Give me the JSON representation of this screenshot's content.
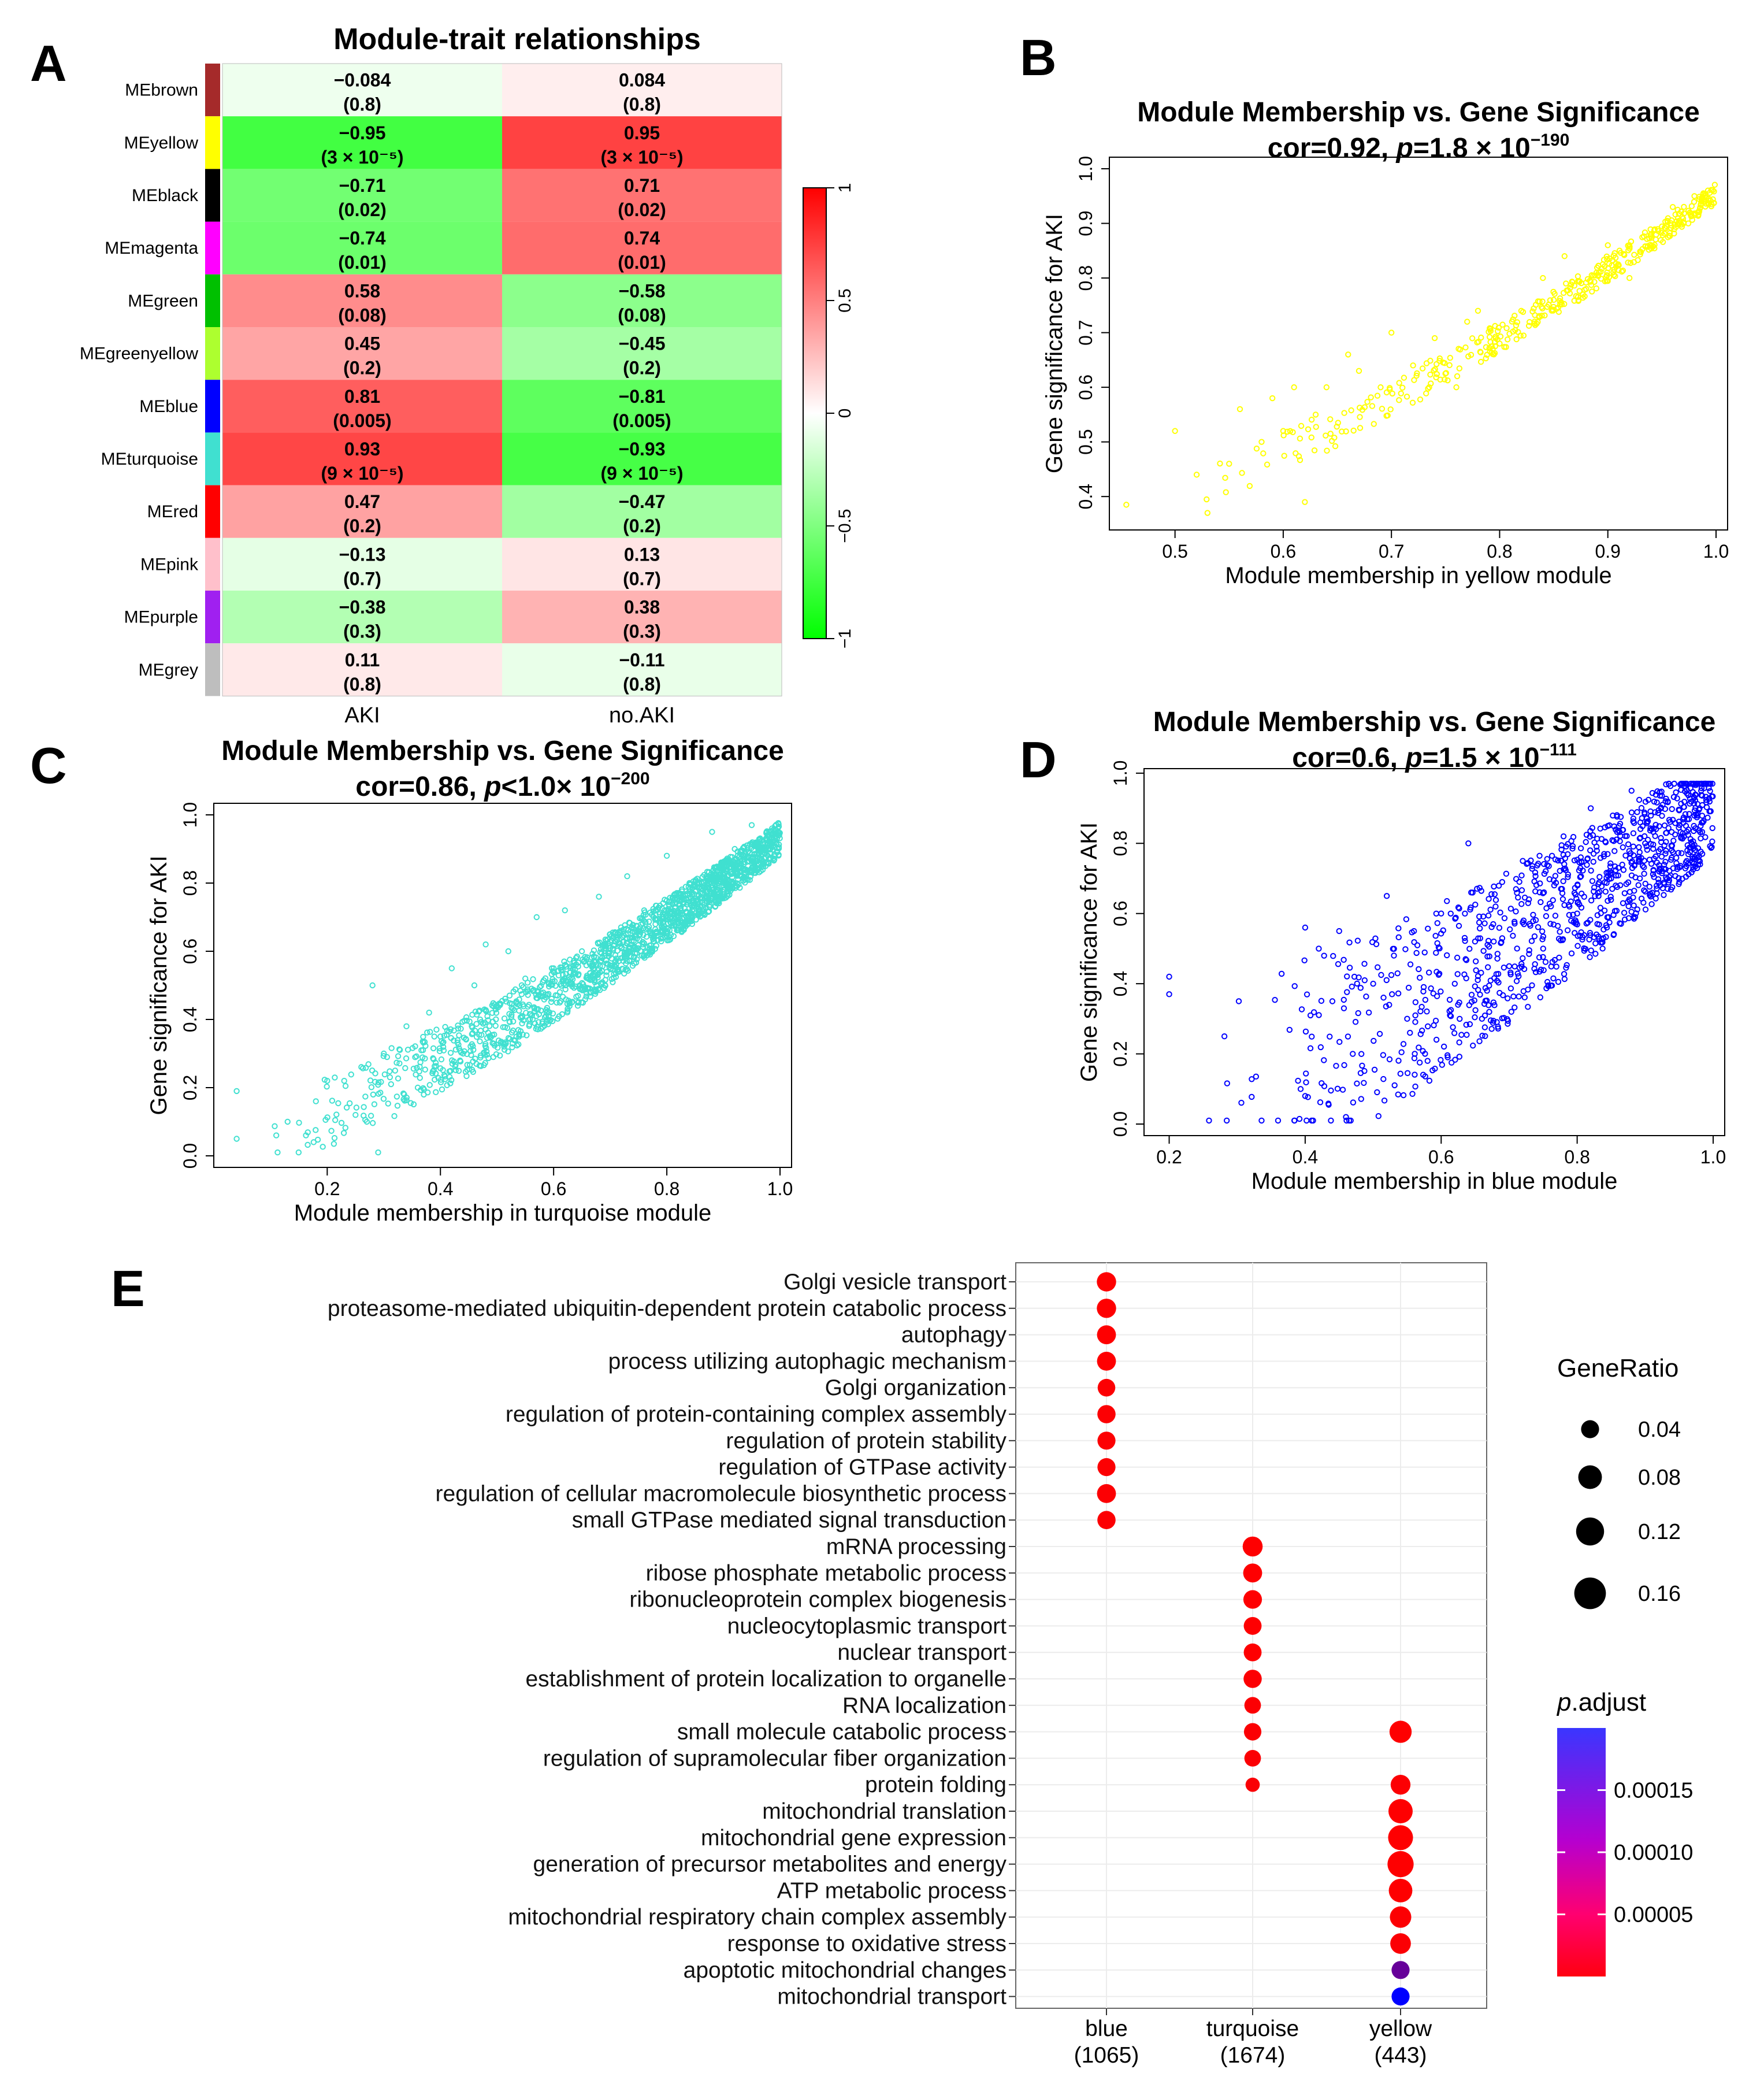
{
  "figure": {
    "panel_labels": [
      "A",
      "B",
      "C",
      "D",
      "E"
    ]
  },
  "chart_data": [
    {
      "panel": "A",
      "type": "heatmap",
      "title": "Module-trait relationships",
      "columns": [
        "AKI",
        "no.AKI"
      ],
      "rows": [
        "MEbrown",
        "MEyellow",
        "MEblack",
        "MEmagenta",
        "MEgreen",
        "MEgreenyellow",
        "MEblue",
        "MEturquoise",
        "MEred",
        "MEpink",
        "MEpurple",
        "MEgrey"
      ],
      "row_colors": [
        "#a52a2a",
        "#ffff00",
        "#000000",
        "#ff00ff",
        "#00c000",
        "#adff2f",
        "#0000ff",
        "#40e0d0",
        "#ff0000",
        "#ffc0cb",
        "#a020f0",
        "#bebebe"
      ],
      "values": [
        [
          -0.084,
          0.084
        ],
        [
          -0.95,
          0.95
        ],
        [
          -0.71,
          0.71
        ],
        [
          -0.74,
          0.74
        ],
        [
          0.58,
          -0.58
        ],
        [
          0.45,
          -0.45
        ],
        [
          0.81,
          -0.81
        ],
        [
          0.93,
          -0.93
        ],
        [
          0.47,
          -0.47
        ],
        [
          -0.13,
          0.13
        ],
        [
          -0.38,
          0.38
        ],
        [
          0.11,
          -0.11
        ]
      ],
      "labels": [
        [
          "−0.084",
          "0.084"
        ],
        [
          "−0.95",
          "0.95"
        ],
        [
          "−0.71",
          "0.71"
        ],
        [
          "−0.74",
          "0.74"
        ],
        [
          "0.58",
          "−0.58"
        ],
        [
          "0.45",
          "−0.45"
        ],
        [
          "0.81",
          "−0.81"
        ],
        [
          "0.93",
          "−0.93"
        ],
        [
          "0.47",
          "−0.47"
        ],
        [
          "−0.13",
          "0.13"
        ],
        [
          "−0.38",
          "0.38"
        ],
        [
          "0.11",
          "−0.11"
        ]
      ],
      "pvalues": [
        [
          "(0.8)",
          "(0.8)"
        ],
        [
          "(3 × 10⁻⁵)",
          "(3 × 10⁻⁵)"
        ],
        [
          "(0.02)",
          "(0.02)"
        ],
        [
          "(0.01)",
          "(0.01)"
        ],
        [
          "(0.08)",
          "(0.08)"
        ],
        [
          "(0.2)",
          "(0.2)"
        ],
        [
          "(0.005)",
          "(0.005)"
        ],
        [
          "(9 × 10⁻⁵)",
          "(9 × 10⁻⁵)"
        ],
        [
          "(0.2)",
          "(0.2)"
        ],
        [
          "(0.7)",
          "(0.7)"
        ],
        [
          "(0.3)",
          "(0.3)"
        ],
        [
          "(0.8)",
          "(0.8)"
        ]
      ],
      "colorbar": {
        "range": [
          -1,
          1
        ],
        "ticks": [
          1,
          0.5,
          0,
          -0.5,
          -1
        ],
        "tick_labels": [
          "1",
          "0.5",
          "0",
          "−0.5",
          "−1"
        ],
        "low": "#00ff00",
        "mid": "#ffffff",
        "high": "#ff0000"
      }
    },
    {
      "panel": "B",
      "type": "scatter",
      "title": "Module Membership vs. Gene Significance",
      "subtitle_prefix": "cor=0.92, ",
      "subtitle_p": "p",
      "subtitle_rest": "=1.8 × 10",
      "subtitle_exp": "−190",
      "xlabel": "Module membership in yellow module",
      "ylabel": "Gene significance for AKI",
      "xlim": [
        0.45,
        1.0
      ],
      "ylim": [
        0.36,
        1.0
      ],
      "xticks": [
        0.5,
        0.6,
        0.7,
        0.8,
        0.9,
        1.0
      ],
      "xtick_labels": [
        "0.5",
        "0.6",
        "0.7",
        "0.8",
        "0.9",
        "1.0"
      ],
      "yticks": [
        0.4,
        0.5,
        0.6,
        0.7,
        0.8,
        0.9,
        1.0
      ],
      "ytick_labels": [
        "0.4",
        "0.5",
        "0.6",
        "0.7",
        "0.8",
        "0.9",
        "1.0"
      ],
      "color": "#ffff00",
      "n_points": 443,
      "cor": 0.92,
      "points": [
        [
          0.455,
          0.385
        ],
        [
          0.5,
          0.52
        ],
        [
          0.52,
          0.44
        ],
        [
          0.53,
          0.37
        ],
        [
          0.55,
          0.46
        ],
        [
          0.56,
          0.56
        ],
        [
          0.58,
          0.5
        ],
        [
          0.59,
          0.58
        ],
        [
          0.6,
          0.52
        ],
        [
          0.61,
          0.6
        ],
        [
          0.62,
          0.39
        ],
        [
          0.63,
          0.55
        ],
        [
          0.64,
          0.6
        ],
        [
          0.66,
          0.66
        ],
        [
          0.67,
          0.63
        ],
        [
          0.69,
          0.6
        ],
        [
          0.7,
          0.7
        ],
        [
          0.72,
          0.64
        ],
        [
          0.74,
          0.69
        ],
        [
          0.76,
          0.6
        ],
        [
          0.77,
          0.72
        ],
        [
          0.78,
          0.74
        ],
        [
          0.8,
          0.68
        ],
        [
          0.82,
          0.74
        ],
        [
          0.84,
          0.8
        ],
        [
          0.85,
          0.76
        ],
        [
          0.86,
          0.84
        ],
        [
          0.88,
          0.78
        ],
        [
          0.9,
          0.86
        ],
        [
          0.92,
          0.8
        ],
        [
          0.94,
          0.88
        ],
        [
          0.96,
          0.93
        ],
        [
          0.97,
          0.9
        ],
        [
          0.98,
          0.95
        ],
        [
          0.99,
          0.94
        ]
      ]
    },
    {
      "panel": "C",
      "type": "scatter",
      "title": "Module Membership vs. Gene Significance",
      "subtitle_prefix": "cor=0.86, ",
      "subtitle_p": "p",
      "subtitle_rest": "<1.0× 10",
      "subtitle_exp": "−200",
      "xlabel": "Module membership in turquoise module",
      "ylabel": "Gene significance for AKI",
      "xlim": [
        0.02,
        1.0
      ],
      "ylim": [
        0.0,
        1.0
      ],
      "xticks": [
        0.2,
        0.4,
        0.6,
        0.8,
        1.0
      ],
      "xtick_labels": [
        "0.2",
        "0.4",
        "0.6",
        "0.8",
        "1.0"
      ],
      "yticks": [
        0.0,
        0.2,
        0.4,
        0.6,
        0.8,
        1.0
      ],
      "ytick_labels": [
        "0.0",
        "0.2",
        "0.4",
        "0.6",
        "0.8",
        "1.0"
      ],
      "color": "#40e0d0",
      "n_points": 1674,
      "cor": 0.86,
      "points": [
        [
          0.04,
          0.19
        ],
        [
          0.04,
          0.05
        ],
        [
          0.11,
          0.06
        ],
        [
          0.13,
          0.1
        ],
        [
          0.18,
          0.16
        ],
        [
          0.2,
          0.22
        ],
        [
          0.23,
          0.22
        ],
        [
          0.25,
          0.12
        ],
        [
          0.27,
          0.1
        ],
        [
          0.28,
          0.5
        ],
        [
          0.29,
          0.01
        ],
        [
          0.3,
          0.3
        ],
        [
          0.32,
          0.25
        ],
        [
          0.34,
          0.38
        ],
        [
          0.36,
          0.2
        ],
        [
          0.38,
          0.42
        ],
        [
          0.4,
          0.35
        ],
        [
          0.42,
          0.55
        ],
        [
          0.44,
          0.3
        ],
        [
          0.46,
          0.5
        ],
        [
          0.48,
          0.62
        ],
        [
          0.5,
          0.44
        ],
        [
          0.52,
          0.6
        ],
        [
          0.55,
          0.52
        ],
        [
          0.57,
          0.7
        ],
        [
          0.6,
          0.55
        ],
        [
          0.62,
          0.72
        ],
        [
          0.65,
          0.6
        ],
        [
          0.68,
          0.76
        ],
        [
          0.7,
          0.65
        ],
        [
          0.73,
          0.82
        ],
        [
          0.76,
          0.72
        ],
        [
          0.8,
          0.88
        ],
        [
          0.84,
          0.8
        ],
        [
          0.88,
          0.95
        ],
        [
          0.92,
          0.9
        ],
        [
          0.95,
          0.97
        ]
      ]
    },
    {
      "panel": "D",
      "type": "scatter",
      "title": "Module Membership vs. Gene Significance",
      "subtitle_prefix": "cor=0.6, ",
      "subtitle_p": "p",
      "subtitle_rest": "=1.5 × 10",
      "subtitle_exp": "−111",
      "xlabel": "Module membership in blue module",
      "ylabel": "Gene significance for AKI",
      "xlim": [
        0.18,
        1.0
      ],
      "ylim": [
        0.0,
        0.98
      ],
      "xticks": [
        0.2,
        0.4,
        0.6,
        0.8,
        1.0
      ],
      "xtick_labels": [
        "0.2",
        "0.4",
        "0.6",
        "0.8",
        "1.0"
      ],
      "yticks": [
        0.0,
        0.2,
        0.4,
        0.6,
        0.8,
        1.0
      ],
      "ytick_labels": [
        "0.0",
        "0.2",
        "0.4",
        "0.6",
        "0.8",
        "1.0"
      ],
      "color": "#0000ff",
      "n_points": 1065,
      "cor": 0.6,
      "points": [
        [
          0.2,
          0.42
        ],
        [
          0.2,
          0.37
        ],
        [
          0.4,
          0.56
        ],
        [
          0.4,
          0.08
        ],
        [
          0.42,
          0.5
        ],
        [
          0.44,
          0.35
        ],
        [
          0.45,
          0.55
        ],
        [
          0.46,
          0.02
        ],
        [
          0.47,
          0.2
        ],
        [
          0.5,
          0.4
        ],
        [
          0.52,
          0.65
        ],
        [
          0.55,
          0.3
        ],
        [
          0.56,
          0.55
        ],
        [
          0.58,
          0.18
        ],
        [
          0.6,
          0.6
        ],
        [
          0.62,
          0.4
        ],
        [
          0.64,
          0.8
        ],
        [
          0.66,
          0.3
        ],
        [
          0.68,
          0.62
        ],
        [
          0.7,
          0.45
        ],
        [
          0.72,
          0.75
        ],
        [
          0.75,
          0.5
        ],
        [
          0.78,
          0.82
        ],
        [
          0.8,
          0.6
        ],
        [
          0.82,
          0.9
        ],
        [
          0.85,
          0.7
        ],
        [
          0.88,
          0.95
        ],
        [
          0.9,
          0.8
        ],
        [
          0.93,
          0.92
        ],
        [
          0.96,
          0.85
        ],
        [
          0.98,
          0.9
        ]
      ]
    },
    {
      "panel": "E",
      "type": "scatter",
      "subtype": "dotplot",
      "terms": [
        "Golgi vesicle transport",
        "proteasome-mediated ubiquitin-dependent protein catabolic process",
        "autophagy",
        "process utilizing autophagic mechanism",
        "Golgi organization",
        "regulation of protein-containing complex assembly",
        "regulation of protein stability",
        "regulation of GTPase activity",
        "regulation of cellular macromolecule biosynthetic process",
        "small GTPase mediated signal transduction",
        "mRNA processing",
        "ribose phosphate metabolic process",
        "ribonucleoprotein complex biogenesis",
        "nucleocytoplasmic transport",
        "nuclear transport",
        "establishment of protein localization to organelle",
        "RNA localization",
        "small molecule catabolic process",
        "regulation of supramolecular fiber organization",
        "protein folding",
        "mitochondrial translation",
        "mitochondrial gene expression",
        "generation of precursor metabolites and energy",
        "ATP metabolic process",
        "mitochondrial respiratory chain complex assembly",
        "response to oxidative stress",
        "apoptotic mitochondrial changes",
        "mitochondrial transport"
      ],
      "clusters": [
        {
          "name": "blue",
          "count": "(1065)"
        },
        {
          "name": "turquoise",
          "count": "(1674)"
        },
        {
          "name": "yellow",
          "count": "(443)"
        }
      ],
      "dots": [
        {
          "term": 0,
          "cluster": 0,
          "gene_ratio": 0.042,
          "p_adjust": 1e-06
        },
        {
          "term": 1,
          "cluster": 0,
          "gene_ratio": 0.042,
          "p_adjust": 1e-06
        },
        {
          "term": 2,
          "cluster": 0,
          "gene_ratio": 0.04,
          "p_adjust": 1e-06
        },
        {
          "term": 3,
          "cluster": 0,
          "gene_ratio": 0.04,
          "p_adjust": 1e-06
        },
        {
          "term": 4,
          "cluster": 0,
          "gene_ratio": 0.033,
          "p_adjust": 2e-06
        },
        {
          "term": 5,
          "cluster": 0,
          "gene_ratio": 0.036,
          "p_adjust": 2e-06
        },
        {
          "term": 6,
          "cluster": 0,
          "gene_ratio": 0.035,
          "p_adjust": 2e-06
        },
        {
          "term": 7,
          "cluster": 0,
          "gene_ratio": 0.035,
          "p_adjust": 2e-06
        },
        {
          "term": 8,
          "cluster": 0,
          "gene_ratio": 0.04,
          "p_adjust": 2e-06
        },
        {
          "term": 9,
          "cluster": 0,
          "gene_ratio": 0.036,
          "p_adjust": 2e-06
        },
        {
          "term": 10,
          "cluster": 1,
          "gene_ratio": 0.046,
          "p_adjust": 1e-06
        },
        {
          "term": 11,
          "cluster": 1,
          "gene_ratio": 0.04,
          "p_adjust": 1e-06
        },
        {
          "term": 12,
          "cluster": 1,
          "gene_ratio": 0.038,
          "p_adjust": 1e-06
        },
        {
          "term": 13,
          "cluster": 1,
          "gene_ratio": 0.034,
          "p_adjust": 1e-06
        },
        {
          "term": 14,
          "cluster": 1,
          "gene_ratio": 0.034,
          "p_adjust": 1e-06
        },
        {
          "term": 15,
          "cluster": 1,
          "gene_ratio": 0.036,
          "p_adjust": 2e-06
        },
        {
          "term": 16,
          "cluster": 1,
          "gene_ratio": 0.028,
          "p_adjust": 2e-06
        },
        {
          "term": 17,
          "cluster": 1,
          "gene_ratio": 0.032,
          "p_adjust": 3e-06
        },
        {
          "term": 18,
          "cluster": 1,
          "gene_ratio": 0.028,
          "p_adjust": 3e-06
        },
        {
          "term": 19,
          "cluster": 1,
          "gene_ratio": 0.018,
          "p_adjust": 4e-06
        },
        {
          "term": 17,
          "cluster": 2,
          "gene_ratio": 0.06,
          "p_adjust": 1e-06
        },
        {
          "term": 19,
          "cluster": 2,
          "gene_ratio": 0.045,
          "p_adjust": 2e-06
        },
        {
          "term": 20,
          "cluster": 2,
          "gene_ratio": 0.075,
          "p_adjust": 1e-06
        },
        {
          "term": 21,
          "cluster": 2,
          "gene_ratio": 0.08,
          "p_adjust": 1e-06
        },
        {
          "term": 22,
          "cluster": 2,
          "gene_ratio": 0.09,
          "p_adjust": 1e-06
        },
        {
          "term": 23,
          "cluster": 2,
          "gene_ratio": 0.07,
          "p_adjust": 1e-06
        },
        {
          "term": 24,
          "cluster": 2,
          "gene_ratio": 0.055,
          "p_adjust": 2e-06
        },
        {
          "term": 25,
          "cluster": 2,
          "gene_ratio": 0.05,
          "p_adjust": 3e-06
        },
        {
          "term": 26,
          "cluster": 2,
          "gene_ratio": 0.035,
          "p_adjust": 0.00012
        },
        {
          "term": 27,
          "cluster": 2,
          "gene_ratio": 0.035,
          "p_adjust": 0.0002
        }
      ],
      "legend_size": {
        "title": "GeneRatio",
        "values": [
          0.04,
          0.08,
          0.12,
          0.16
        ],
        "labels": [
          "0.04",
          "0.08",
          "0.12",
          "0.16"
        ]
      },
      "legend_color": {
        "title_italic": "p",
        "title_rest": ".adjust",
        "range": [
          0.0,
          0.0002
        ],
        "ticks": [
          0.00015,
          0.0001,
          5e-05
        ],
        "labels": [
          "0.00015",
          "0.00010",
          "0.00005"
        ],
        "low": "#ff0000",
        "high": "#0000ff"
      }
    }
  ]
}
